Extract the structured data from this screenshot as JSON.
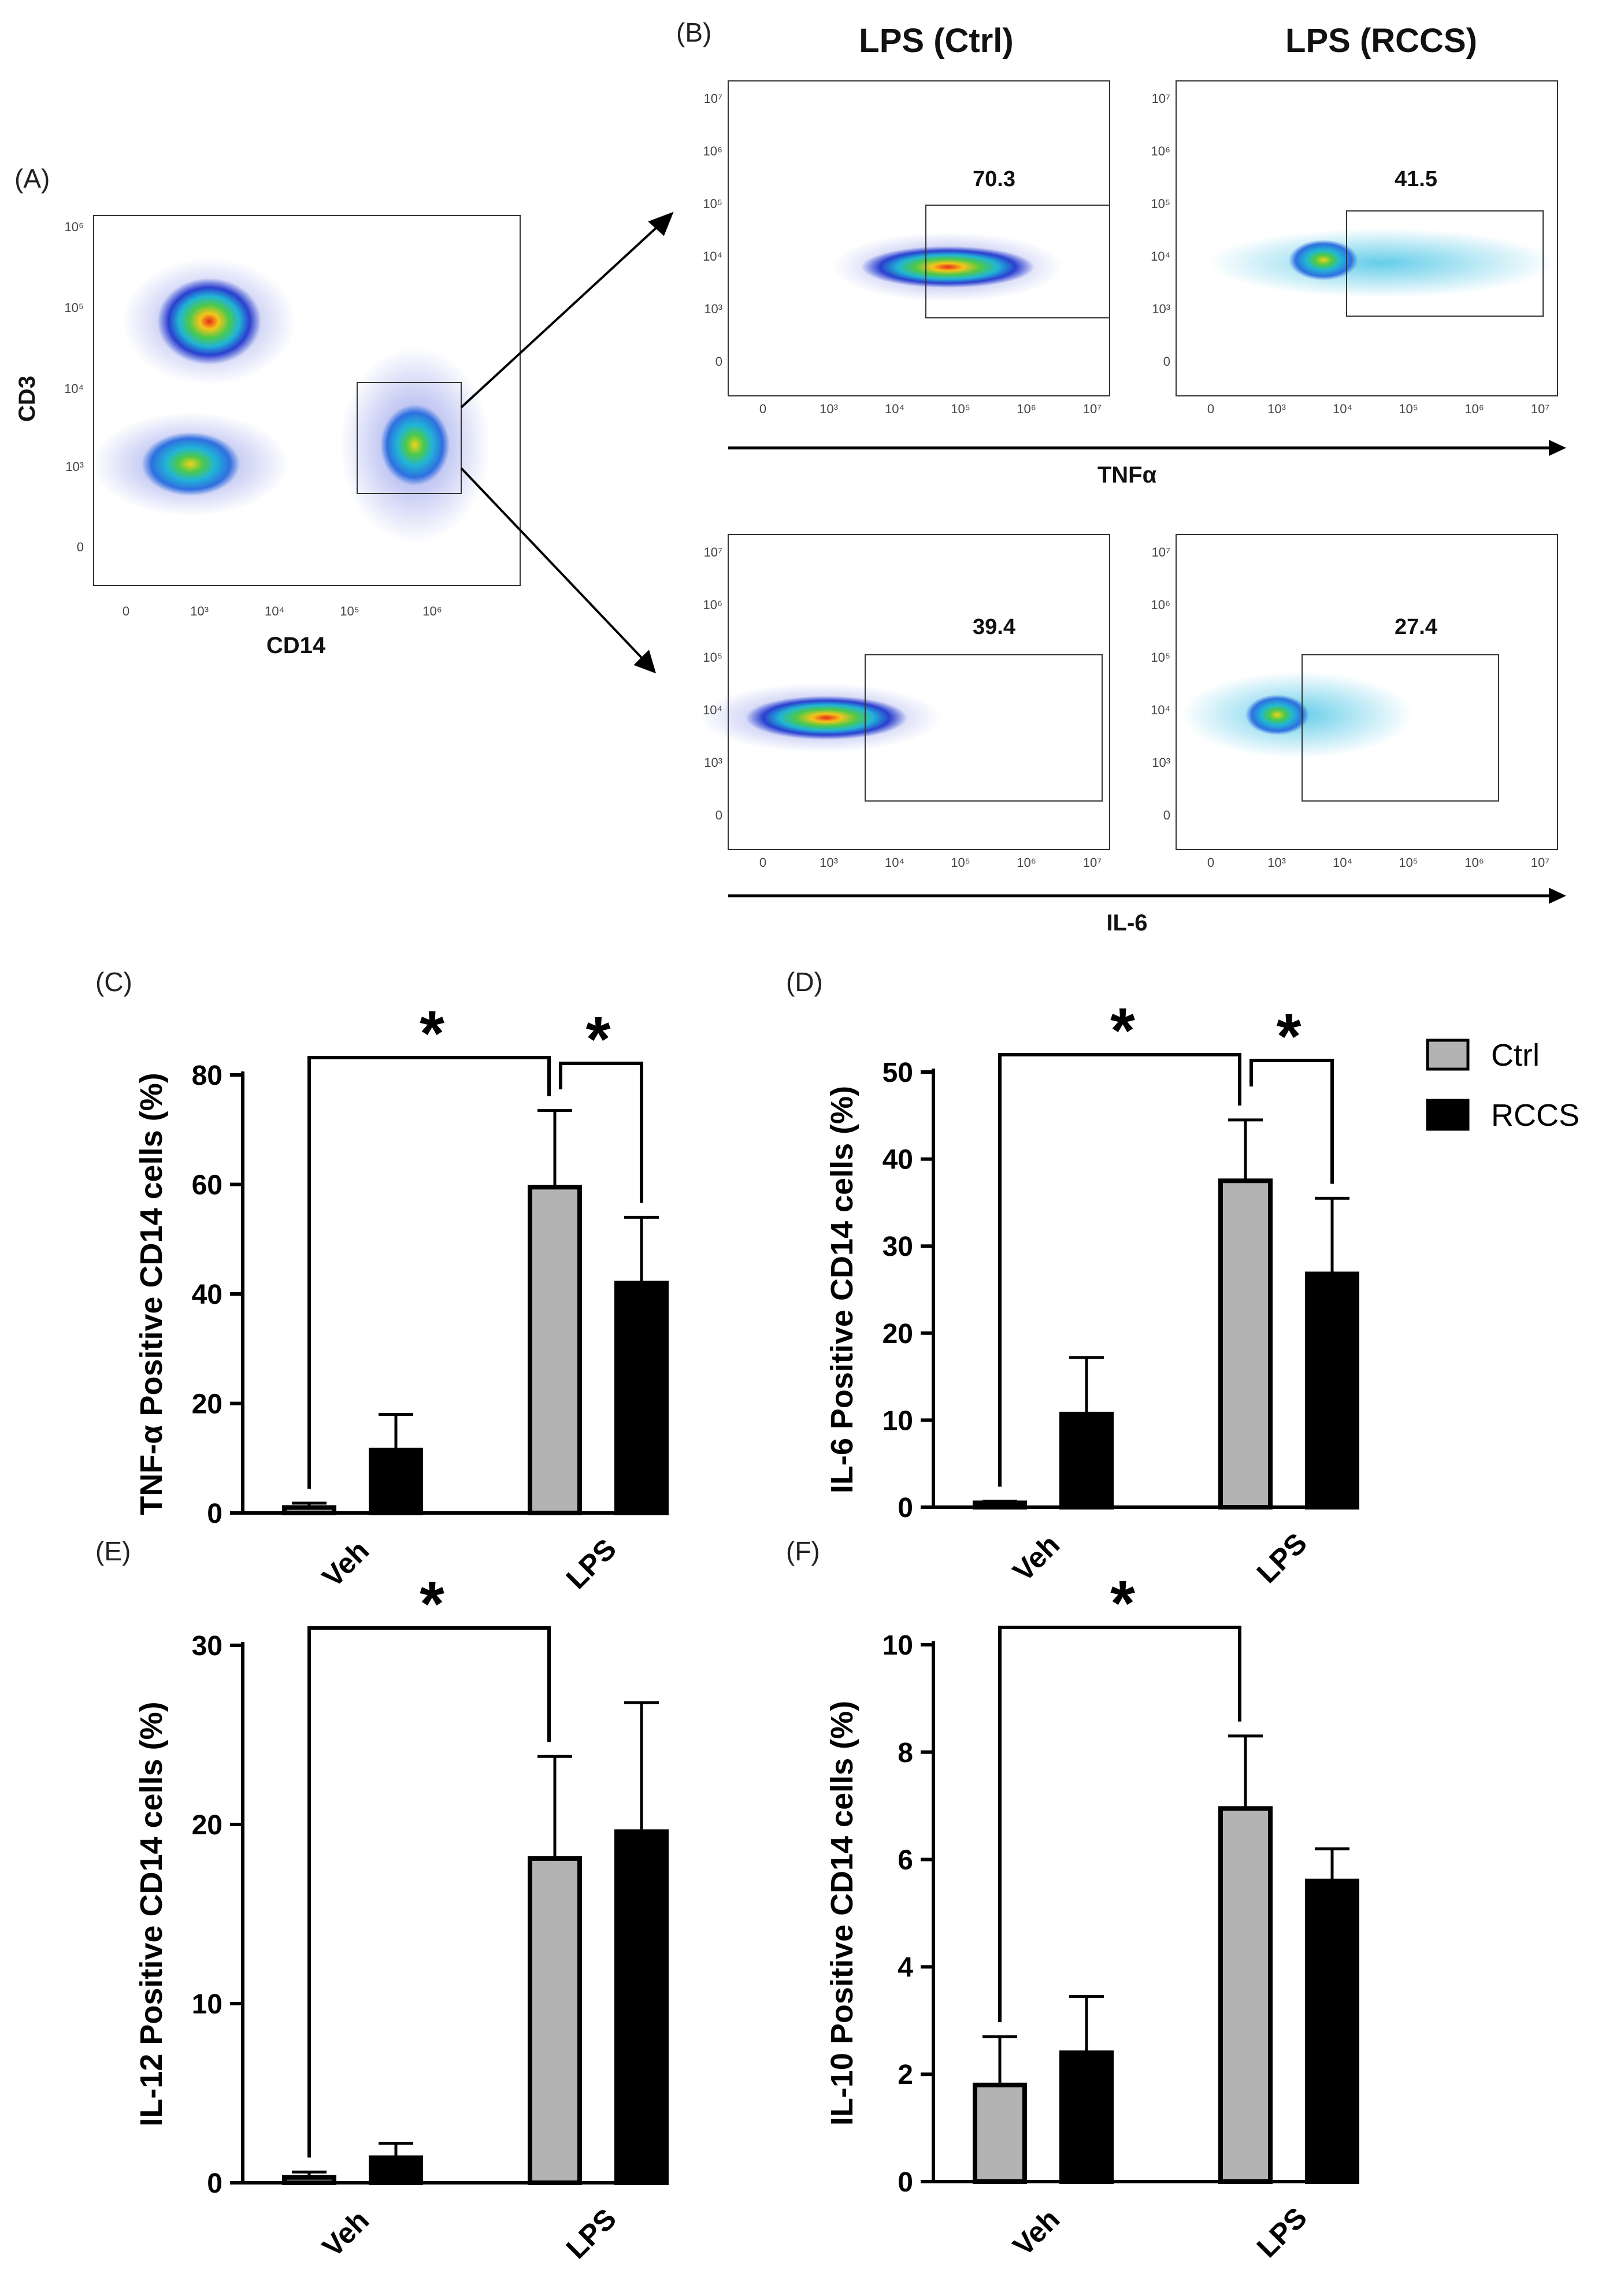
{
  "panel_labels": {
    "A": "(A)",
    "B": "(B)",
    "C": "(C)",
    "D": "(D)",
    "E": "(E)",
    "F": "(F)"
  },
  "flow": {
    "panel_a": {
      "x_label": "CD14",
      "y_label": "CD3",
      "x_ticks": [
        "0",
        "10³",
        "10⁴",
        "10⁵",
        "10⁶"
      ],
      "y_ticks": [
        "0",
        "10³",
        "10⁴",
        "10⁵",
        "10⁶"
      ]
    },
    "column_headers": [
      "LPS (Ctrl)",
      "LPS (RCCS)"
    ],
    "axis_tnf": "TNFα",
    "axis_il6": "IL-6",
    "x_ticks": [
      "0",
      "10³",
      "10⁴",
      "10⁵",
      "10⁶",
      "10⁷"
    ],
    "y_ticks": [
      "0",
      "10³",
      "10⁴",
      "10⁵",
      "10⁶",
      "10⁷"
    ],
    "gates": {
      "tnf_ctrl": "70.3",
      "tnf_rccs": "41.5",
      "il6_ctrl": "39.4",
      "il6_rccs": "27.4"
    }
  },
  "legend": {
    "ctrl": {
      "label": "Ctrl",
      "color": "#b3b3b3"
    },
    "rccs": {
      "label": "RCCS",
      "color": "#000000"
    }
  },
  "chart_data": [
    {
      "id": "C",
      "type": "bar",
      "ylabel": "TNF-α Positive CD14 cells  (%)",
      "categories": [
        "Veh",
        "LPS"
      ],
      "ylim": [
        0,
        80
      ],
      "yticks": [
        0,
        20,
        40,
        60,
        80
      ],
      "series": [
        {
          "name": "Ctrl",
          "values": [
            1,
            59.5
          ],
          "errors": [
            0.8,
            14
          ]
        },
        {
          "name": "RCCS",
          "values": [
            11.5,
            42
          ],
          "errors": [
            6.5,
            12
          ]
        }
      ],
      "significance": [
        {
          "from": "Ctrl:Veh",
          "to": "Ctrl:LPS",
          "label": "*"
        },
        {
          "from": "Ctrl:LPS",
          "to": "RCCS:LPS",
          "label": "*"
        }
      ]
    },
    {
      "id": "D",
      "type": "bar",
      "ylabel": "IL-6 Positive CD14 cells  (%)",
      "categories": [
        "Veh",
        "LPS"
      ],
      "ylim": [
        0,
        50
      ],
      "yticks": [
        0,
        10,
        20,
        30,
        40,
        50
      ],
      "series": [
        {
          "name": "Ctrl",
          "values": [
            0.5,
            37.5
          ],
          "errors": [
            0.2,
            7
          ]
        },
        {
          "name": "RCCS",
          "values": [
            10.7,
            26.8
          ],
          "errors": [
            6.5,
            8.7
          ]
        }
      ],
      "significance": [
        {
          "from": "Ctrl:Veh",
          "to": "Ctrl:LPS",
          "label": "*"
        },
        {
          "from": "Ctrl:LPS",
          "to": "RCCS:LPS",
          "label": "*"
        }
      ]
    },
    {
      "id": "E",
      "type": "bar",
      "ylabel": "IL-12 Positive CD14 cells  (%)",
      "categories": [
        "Veh",
        "LPS"
      ],
      "ylim": [
        0,
        30
      ],
      "yticks": [
        0,
        10,
        20,
        30
      ],
      "series": [
        {
          "name": "Ctrl",
          "values": [
            0.3,
            18.1
          ],
          "errors": [
            0.3,
            5.7
          ]
        },
        {
          "name": "RCCS",
          "values": [
            1.4,
            19.6
          ],
          "errors": [
            0.8,
            7.2
          ]
        }
      ],
      "significance": [
        {
          "from": "Ctrl:Veh",
          "to": "Ctrl:LPS",
          "label": "*"
        }
      ]
    },
    {
      "id": "F",
      "type": "bar",
      "ylabel": "IL-10 Positive CD14 cells  (%)",
      "categories": [
        "Veh",
        "LPS"
      ],
      "ylim": [
        0,
        10
      ],
      "yticks": [
        0,
        2,
        4,
        6,
        8,
        10
      ],
      "series": [
        {
          "name": "Ctrl",
          "values": [
            1.8,
            6.95
          ],
          "errors": [
            0.9,
            1.35
          ]
        },
        {
          "name": "RCCS",
          "values": [
            2.4,
            5.6
          ],
          "errors": [
            1.05,
            0.6
          ]
        }
      ],
      "significance": [
        {
          "from": "Ctrl:Veh",
          "to": "Ctrl:LPS",
          "label": "*"
        }
      ]
    }
  ]
}
